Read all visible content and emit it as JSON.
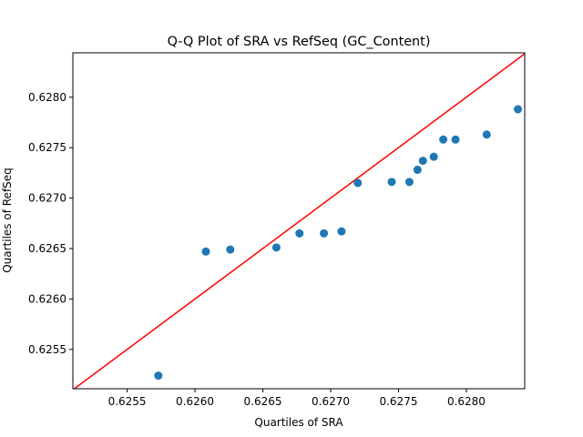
{
  "chart_data": {
    "type": "scatter",
    "title": "Q-Q Plot of SRA vs RefSeq (GC_Content)",
    "xlabel": "Quartiles of SRA",
    "ylabel": "Quartiles of RefSeq",
    "xlim": [
      0.6251,
      0.62843
    ],
    "ylim": [
      0.62511,
      0.62844
    ],
    "xticks": [
      0.6255,
      0.626,
      0.6265,
      0.627,
      0.6275,
      0.628
    ],
    "xtick_labels": [
      "0.6255",
      "0.6260",
      "0.6265",
      "0.6270",
      "0.6275",
      "0.6280"
    ],
    "yticks": [
      0.6255,
      0.626,
      0.6265,
      0.627,
      0.6275,
      0.628
    ],
    "ytick_labels": [
      "0.6255",
      "0.6260",
      "0.6265",
      "0.6270",
      "0.6275",
      "0.6280"
    ],
    "grid": false,
    "point_color": "#1f77b4",
    "reference_line": {
      "kind": "y=x",
      "color": "#ff0000"
    },
    "points": [
      [
        0.62573,
        0.62524
      ],
      [
        0.62608,
        0.62647
      ],
      [
        0.62626,
        0.62649
      ],
      [
        0.6266,
        0.62651
      ],
      [
        0.62677,
        0.62665
      ],
      [
        0.62695,
        0.62665
      ],
      [
        0.62708,
        0.62667
      ],
      [
        0.6272,
        0.62715
      ],
      [
        0.62745,
        0.62716
      ],
      [
        0.62758,
        0.62716
      ],
      [
        0.62764,
        0.62728
      ],
      [
        0.62768,
        0.62737
      ],
      [
        0.62776,
        0.62741
      ],
      [
        0.62783,
        0.62758
      ],
      [
        0.62792,
        0.62758
      ],
      [
        0.62815,
        0.62763
      ],
      [
        0.62838,
        0.62788
      ]
    ]
  }
}
